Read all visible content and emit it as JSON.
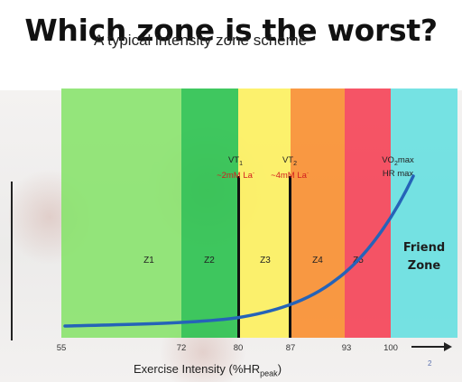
{
  "meme": {
    "title": "Which zone is the worst?"
  },
  "slide": {
    "title": "A typical intensity zone scheme",
    "page_number": "2",
    "xlabel_main": "Exercise Intensity (%HR",
    "xlabel_sub": "peak",
    "xlabel_end": ")"
  },
  "thresholds": [
    {
      "name": "VT",
      "sub": "1",
      "detail": "~2mM La",
      "sup": "-"
    },
    {
      "name": "VT",
      "sub": "2",
      "detail": "~4mM La",
      "sup": "-"
    },
    {
      "name": "VO",
      "sub": "2",
      "name_end": "max",
      "detail": "HR max"
    }
  ],
  "zones": [
    {
      "label": "Z1",
      "from": 55,
      "to": 72,
      "color": "#86e36a"
    },
    {
      "label": "Z2",
      "from": 72,
      "to": 80,
      "color": "#26c04a"
    },
    {
      "label": "Z3",
      "from": 80,
      "to": 87,
      "color": "#fdf05a"
    },
    {
      "label": "Z4",
      "from": 87,
      "to": 93,
      "color": "#f98c2a"
    },
    {
      "label": "Z5",
      "from": 93,
      "to": 100,
      "color": "#f53d52"
    },
    {
      "label": "Friend Zone",
      "from": 100,
      "to": 110,
      "color": "#63dfe0"
    }
  ],
  "axis_ticks": [
    "55",
    "72",
    "80",
    "87",
    "93",
    "100"
  ],
  "curve_color": "#2563b8"
}
